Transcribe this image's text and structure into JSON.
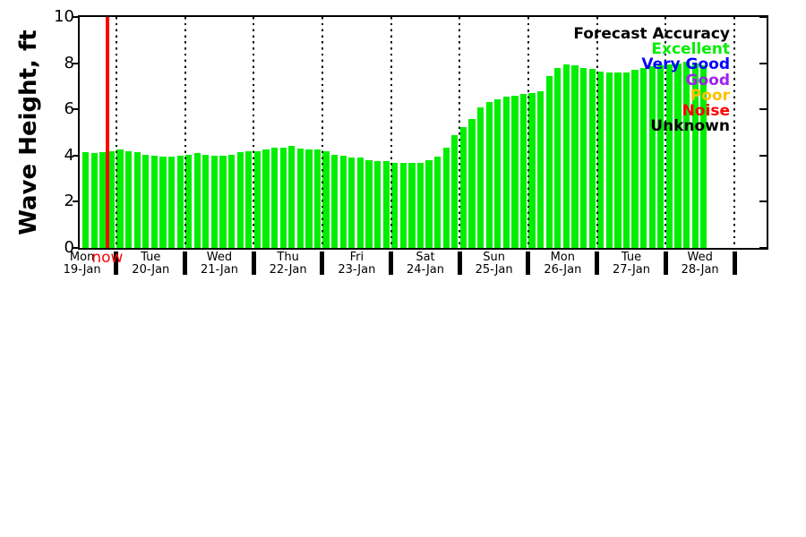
{
  "chart_data": {
    "type": "bar",
    "title": "",
    "ylabel": "Wave Height, ft",
    "ylim": [
      0,
      10
    ],
    "yticks": [
      0,
      2,
      4,
      6,
      8,
      10
    ],
    "grid": "vertical dotted lines at day boundaries",
    "bar_color": "#00ee00",
    "interval_hours": 3,
    "days": [
      {
        "day": "Mon",
        "date": "19-Jan",
        "start_slot": 4,
        "values": [
          4.15,
          4.1,
          4.15,
          4.2
        ]
      },
      {
        "day": "Tue",
        "date": "20-Jan",
        "start_slot": 0,
        "values": [
          4.25,
          4.2,
          4.15,
          4.05,
          4.0,
          3.95,
          3.95,
          4.0
        ]
      },
      {
        "day": "Wed",
        "date": "21-Jan",
        "start_slot": 0,
        "values": [
          4.05,
          4.1,
          4.05,
          4.0,
          4.0,
          4.05,
          4.15,
          4.2
        ]
      },
      {
        "day": "Thu",
        "date": "22-Jan",
        "start_slot": 0,
        "values": [
          4.2,
          4.25,
          4.35,
          4.35,
          4.4,
          4.3,
          4.25,
          4.25
        ]
      },
      {
        "day": "Fri",
        "date": "23-Jan",
        "start_slot": 0,
        "values": [
          4.2,
          4.05,
          4.0,
          3.9,
          3.9,
          3.8,
          3.75,
          3.75
        ]
      },
      {
        "day": "Sat",
        "date": "24-Jan",
        "start_slot": 0,
        "values": [
          3.7,
          3.7,
          3.7,
          3.7,
          3.8,
          3.95,
          4.35,
          4.9
        ]
      },
      {
        "day": "Sun",
        "date": "25-Jan",
        "start_slot": 0,
        "values": [
          5.25,
          5.6,
          6.1,
          6.3,
          6.45,
          6.55,
          6.6,
          6.65
        ]
      },
      {
        "day": "Mon",
        "date": "26-Jan",
        "start_slot": 0,
        "values": [
          6.7,
          6.8,
          7.45,
          7.8,
          7.95,
          7.9,
          7.8,
          7.75
        ]
      },
      {
        "day": "Tue",
        "date": "27-Jan",
        "start_slot": 0,
        "values": [
          7.65,
          7.6,
          7.6,
          7.6,
          7.7,
          7.8,
          7.85,
          7.9
        ]
      },
      {
        "day": "Wed",
        "date": "28-Jan",
        "start_slot": 0,
        "values": [
          7.95,
          8.0,
          8.05,
          8.0,
          7.9
        ]
      }
    ],
    "now_marker": {
      "label": "now",
      "color": "#ff0000",
      "day_index": 0,
      "slot_position": 6.9
    },
    "legend": {
      "title": "Forecast Accuracy",
      "title_color": "#000000",
      "position": "top-right-inside",
      "entries": [
        {
          "label": "Excellent",
          "color": "#00ee00"
        },
        {
          "label": "Very Good",
          "color": "#0000ff"
        },
        {
          "label": "Good",
          "color": "#a020f0"
        },
        {
          "label": "Poor",
          "color": "#ffc000"
        },
        {
          "label": "Noise",
          "color": "#ff0000"
        },
        {
          "label": "Unknown",
          "color": "#000000"
        }
      ]
    }
  }
}
